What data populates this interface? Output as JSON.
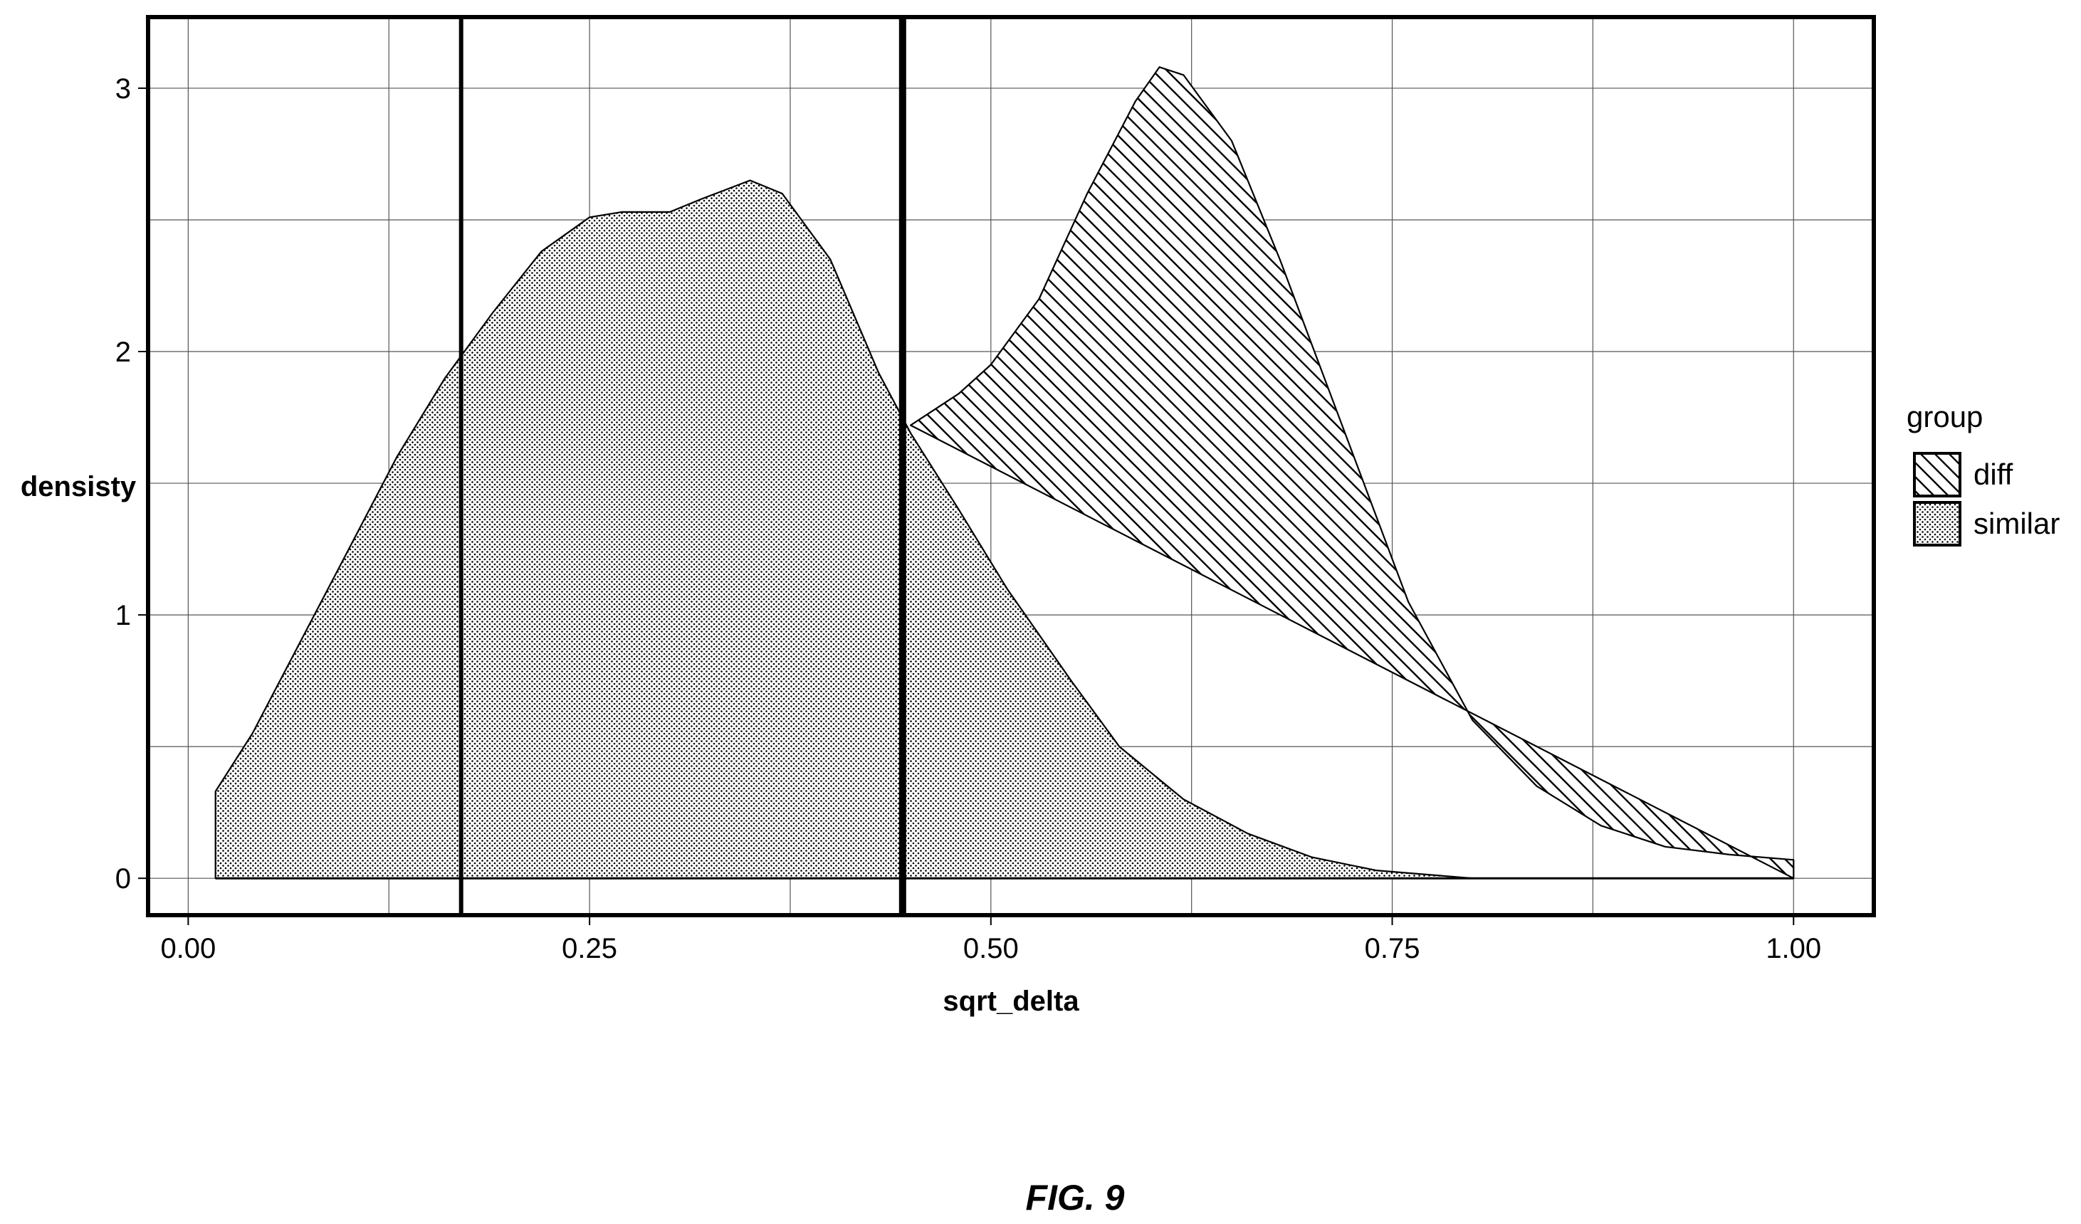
{
  "figure": {
    "caption": "FIG. 9"
  },
  "chart_data": {
    "type": "area",
    "xlabel": "sqrt_delta",
    "ylabel": "densisty",
    "xlim": [
      -0.025,
      1.05
    ],
    "ylim": [
      -0.14,
      3.27
    ],
    "x_ticks": [
      "0.00",
      "0.25",
      "0.50",
      "0.75",
      "1.00"
    ],
    "x_tick_values": [
      0,
      0.25,
      0.5,
      0.75,
      1.0
    ],
    "y_ticks": [
      "0",
      "1",
      "2",
      "3"
    ],
    "y_tick_values": [
      0,
      1,
      2,
      3
    ],
    "grid": true,
    "legend": {
      "title": "group",
      "position": "right",
      "entries": [
        "diff",
        "similar"
      ]
    },
    "vertical_lines": [
      {
        "x": 0.17,
        "style": "solid"
      },
      {
        "x": 0.445,
        "style": "bold"
      }
    ],
    "series": [
      {
        "name": "similar",
        "pattern": "dots",
        "points": [
          [
            0.017,
            0.0
          ],
          [
            0.017,
            0.33
          ],
          [
            0.04,
            0.55
          ],
          [
            0.07,
            0.9
          ],
          [
            0.1,
            1.25
          ],
          [
            0.13,
            1.6
          ],
          [
            0.16,
            1.9
          ],
          [
            0.19,
            2.15
          ],
          [
            0.22,
            2.38
          ],
          [
            0.25,
            2.51
          ],
          [
            0.27,
            2.53
          ],
          [
            0.3,
            2.53
          ],
          [
            0.32,
            2.58
          ],
          [
            0.35,
            2.65
          ],
          [
            0.37,
            2.6
          ],
          [
            0.4,
            2.35
          ],
          [
            0.43,
            1.92
          ],
          [
            0.45,
            1.69
          ],
          [
            0.48,
            1.4
          ],
          [
            0.51,
            1.1
          ],
          [
            0.55,
            0.75
          ],
          [
            0.58,
            0.5
          ],
          [
            0.62,
            0.3
          ],
          [
            0.66,
            0.17
          ],
          [
            0.7,
            0.08
          ],
          [
            0.74,
            0.03
          ],
          [
            0.78,
            0.01
          ],
          [
            0.8,
            0.0
          ]
        ]
      },
      {
        "name": "diff",
        "pattern": "diagonal-hatch",
        "points": [
          [
            0.45,
            1.72
          ],
          [
            0.48,
            1.84
          ],
          [
            0.5,
            1.95
          ],
          [
            0.53,
            2.2
          ],
          [
            0.56,
            2.6
          ],
          [
            0.59,
            2.95
          ],
          [
            0.605,
            3.08
          ],
          [
            0.62,
            3.05
          ],
          [
            0.65,
            2.8
          ],
          [
            0.68,
            2.35
          ],
          [
            0.72,
            1.7
          ],
          [
            0.76,
            1.05
          ],
          [
            0.8,
            0.6
          ],
          [
            0.84,
            0.35
          ],
          [
            0.88,
            0.2
          ],
          [
            0.92,
            0.12
          ],
          [
            0.96,
            0.09
          ],
          [
            1.0,
            0.07
          ],
          [
            1.0,
            0.0
          ]
        ]
      }
    ]
  }
}
